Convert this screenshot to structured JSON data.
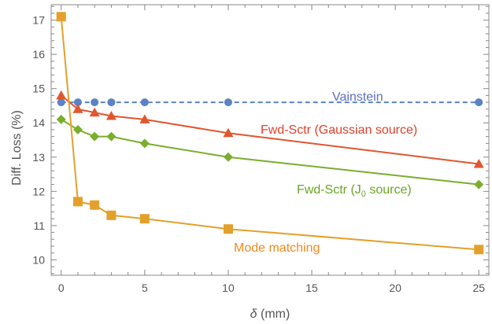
{
  "chart_data": {
    "type": "line",
    "xlabel": {
      "symbol": "δ",
      "unit": " (mm)"
    },
    "ylabel": "Diff. Loss (%)",
    "xlim": [
      -0.6,
      25.6
    ],
    "ylim": [
      9.55,
      17.45
    ],
    "xticks": [
      0,
      5,
      10,
      15,
      20,
      25
    ],
    "yticks": [
      10,
      11,
      12,
      13,
      14,
      15,
      16,
      17
    ],
    "grid": false,
    "legend": "none",
    "series": [
      {
        "name": "Vainstein",
        "marker": "circle",
        "dashed": true,
        "color": "#5b82c2",
        "x": [
          0,
          1,
          2,
          3,
          5,
          10,
          25
        ],
        "y": [
          14.6,
          14.6,
          14.6,
          14.6,
          14.6,
          14.6,
          14.6
        ]
      },
      {
        "name": "Fwd-Sctr (Gaussian source)",
        "marker": "triangle",
        "dashed": false,
        "color": "#e1562e",
        "x": [
          0,
          1,
          2,
          3,
          5,
          10,
          25
        ],
        "y": [
          14.8,
          14.4,
          14.3,
          14.2,
          14.1,
          13.7,
          12.8
        ]
      },
      {
        "name": "Fwd-Sctr (J0 source)",
        "marker": "diamond",
        "dashed": false,
        "color": "#7aae2c",
        "x": [
          0,
          1,
          2,
          3,
          5,
          10,
          25
        ],
        "y": [
          14.1,
          13.8,
          13.6,
          13.6,
          13.4,
          13.0,
          12.2
        ]
      },
      {
        "name": "Mode matching",
        "marker": "square",
        "dashed": false,
        "color": "#e3a02a",
        "x": [
          0,
          1,
          2,
          3,
          5,
          10,
          25
        ],
        "y": [
          17.1,
          11.7,
          11.6,
          11.3,
          11.2,
          10.9,
          10.3
        ]
      }
    ],
    "annotations": [
      {
        "name": "annotation-vainstein",
        "text": "Vainstein",
        "color": "#5b6ec7"
      },
      {
        "name": "annotation-gaussian",
        "text": "Fwd-Sctr (Gaussian source)",
        "color": "#e1402a"
      },
      {
        "name": "annotation-j0",
        "text_pre": "Fwd-Sctr (J",
        "text_sub": "0",
        "text_post": " source)",
        "color": "#6aa624"
      },
      {
        "name": "annotation-mode-matching",
        "text": "Mode matching",
        "color": "#f08a1c"
      }
    ]
  }
}
